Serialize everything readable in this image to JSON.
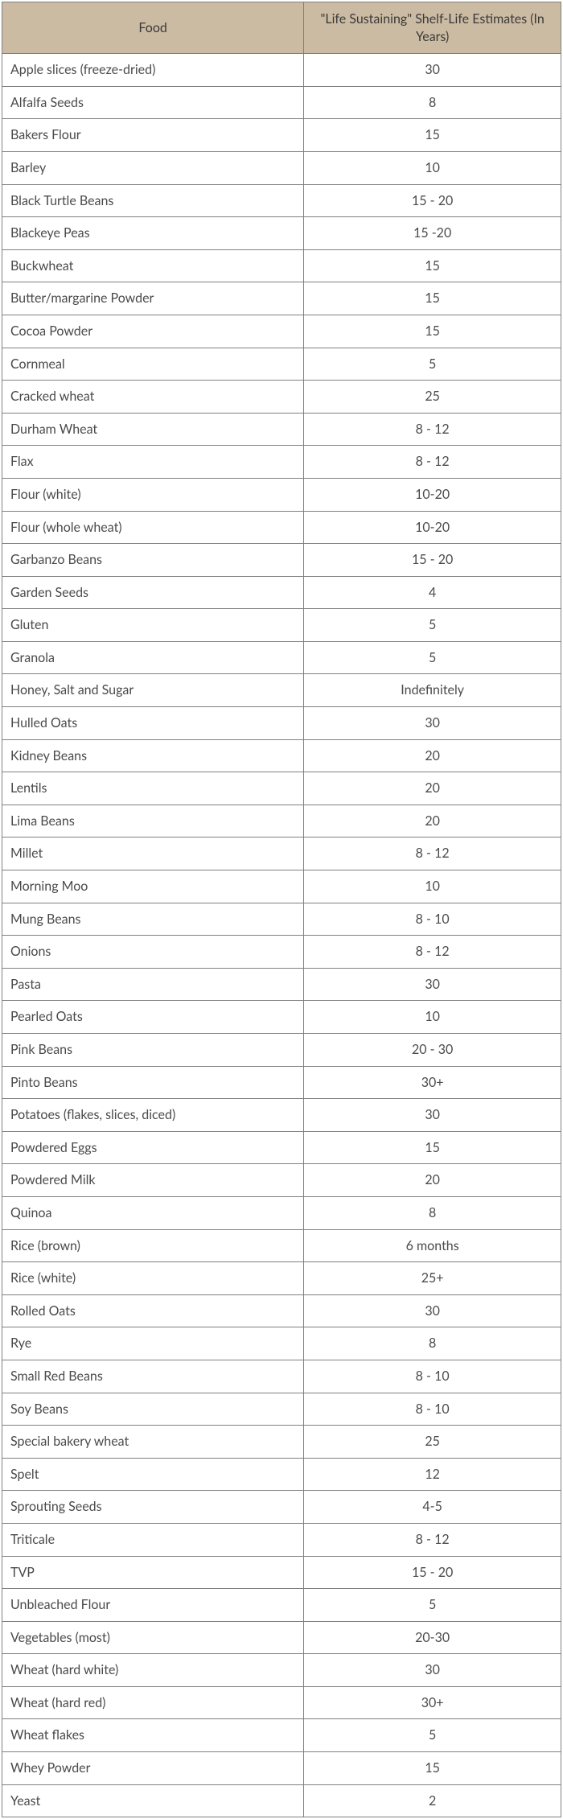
{
  "table": {
    "header_bg": "#ccbba3",
    "border_color": "#808080",
    "text_color": "#4a4a4a",
    "columns": [
      "Food",
      "\"Life Sustaining\" Shelf-Life Estimates (In Years)"
    ],
    "col_widths_pct": [
      54,
      46
    ],
    "col_align": [
      "left",
      "center"
    ],
    "font_size_pt": 12,
    "rows": [
      [
        "Apple slices (freeze-dried)",
        "30"
      ],
      [
        "Alfalfa Seeds",
        "8"
      ],
      [
        "Bakers Flour",
        "15"
      ],
      [
        "Barley",
        "10"
      ],
      [
        "Black Turtle Beans",
        "15 - 20"
      ],
      [
        "Blackeye Peas",
        "15 -20"
      ],
      [
        "Buckwheat",
        "15"
      ],
      [
        "Butter/margarine Powder",
        "15"
      ],
      [
        "Cocoa Powder",
        "15"
      ],
      [
        "Cornmeal",
        "5"
      ],
      [
        "Cracked wheat",
        "25"
      ],
      [
        "Durham Wheat",
        "8 - 12"
      ],
      [
        "Flax",
        "8 - 12"
      ],
      [
        "Flour (white)",
        "10-20"
      ],
      [
        "Flour (whole wheat)",
        "10-20"
      ],
      [
        "Garbanzo Beans",
        "15 - 20"
      ],
      [
        "Garden Seeds",
        "4"
      ],
      [
        "Gluten",
        "5"
      ],
      [
        "Granola",
        "5"
      ],
      [
        "Honey, Salt and Sugar",
        "Indefinitely"
      ],
      [
        "Hulled Oats",
        "30"
      ],
      [
        "Kidney Beans",
        "20"
      ],
      [
        "Lentils",
        "20"
      ],
      [
        "Lima Beans",
        "20"
      ],
      [
        "Millet",
        "8 - 12"
      ],
      [
        "Morning Moo",
        "10"
      ],
      [
        "Mung Beans",
        "8 - 10"
      ],
      [
        "Onions",
        "8 - 12"
      ],
      [
        "Pasta",
        "30"
      ],
      [
        "Pearled Oats",
        "10"
      ],
      [
        "Pink Beans",
        "20 - 30"
      ],
      [
        "Pinto Beans",
        "30+"
      ],
      [
        "Potatoes (flakes, slices, diced)",
        "30"
      ],
      [
        "Powdered Eggs",
        "15"
      ],
      [
        "Powdered Milk",
        "20"
      ],
      [
        "Quinoa",
        "8"
      ],
      [
        "Rice (brown)",
        "6 months"
      ],
      [
        "Rice (white)",
        "25+"
      ],
      [
        "Rolled Oats",
        "30"
      ],
      [
        "Rye",
        "8"
      ],
      [
        "Small Red Beans",
        "8 - 10"
      ],
      [
        "Soy Beans",
        "8 - 10"
      ],
      [
        "Special bakery wheat",
        "25"
      ],
      [
        "Spelt",
        "12"
      ],
      [
        "Sprouting Seeds",
        "4-5"
      ],
      [
        "Triticale",
        "8 - 12"
      ],
      [
        "TVP",
        "15 - 20"
      ],
      [
        "Unbleached Flour",
        "5"
      ],
      [
        "Vegetables (most)",
        "20-30"
      ],
      [
        "Wheat (hard white)",
        "30"
      ],
      [
        "Wheat (hard red)",
        "30+"
      ],
      [
        "Wheat flakes",
        "5"
      ],
      [
        "Whey Powder",
        "15"
      ],
      [
        "Yeast",
        "2"
      ]
    ]
  }
}
